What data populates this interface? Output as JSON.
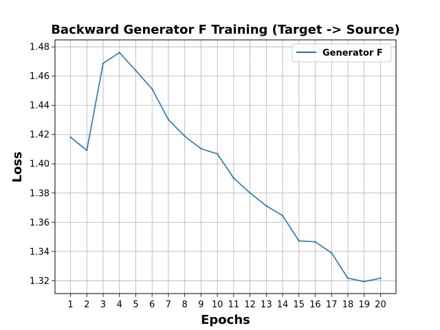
{
  "chart_data": {
    "type": "line",
    "title": "Backward Generator F Training (Target -> Source)",
    "xlabel": "Epochs",
    "ylabel": "Loss",
    "x": [
      1,
      2,
      3,
      4,
      5,
      6,
      7,
      8,
      9,
      10,
      11,
      12,
      13,
      14,
      15,
      16,
      17,
      18,
      19,
      20
    ],
    "x_tick_labels": [
      "1",
      "2",
      "3",
      "4",
      "5",
      "6",
      "7",
      "8",
      "9",
      "10",
      "11",
      "12",
      "13",
      "14",
      "15",
      "16",
      "17",
      "18",
      "19",
      "20"
    ],
    "y_tick_values": [
      1.32,
      1.34,
      1.36,
      1.38,
      1.4,
      1.42,
      1.44,
      1.46,
      1.48
    ],
    "y_tick_labels": [
      "1.32",
      "1.34",
      "1.36",
      "1.38",
      "1.40",
      "1.42",
      "1.44",
      "1.46",
      "1.48"
    ],
    "xlim": [
      0.05,
      20.95
    ],
    "ylim": [
      1.3112,
      1.4848
    ],
    "grid": true,
    "legend_position": "top-right",
    "series": [
      {
        "name": "Generator F",
        "color": "#1f77b4",
        "values": [
          1.4182,
          1.4092,
          1.4687,
          1.4761,
          1.4638,
          1.4512,
          1.4302,
          1.4189,
          1.4103,
          1.4068,
          1.3902,
          1.3801,
          1.3712,
          1.3645,
          1.3473,
          1.3466,
          1.339,
          1.3217,
          1.3194,
          1.3217
        ]
      }
    ]
  }
}
